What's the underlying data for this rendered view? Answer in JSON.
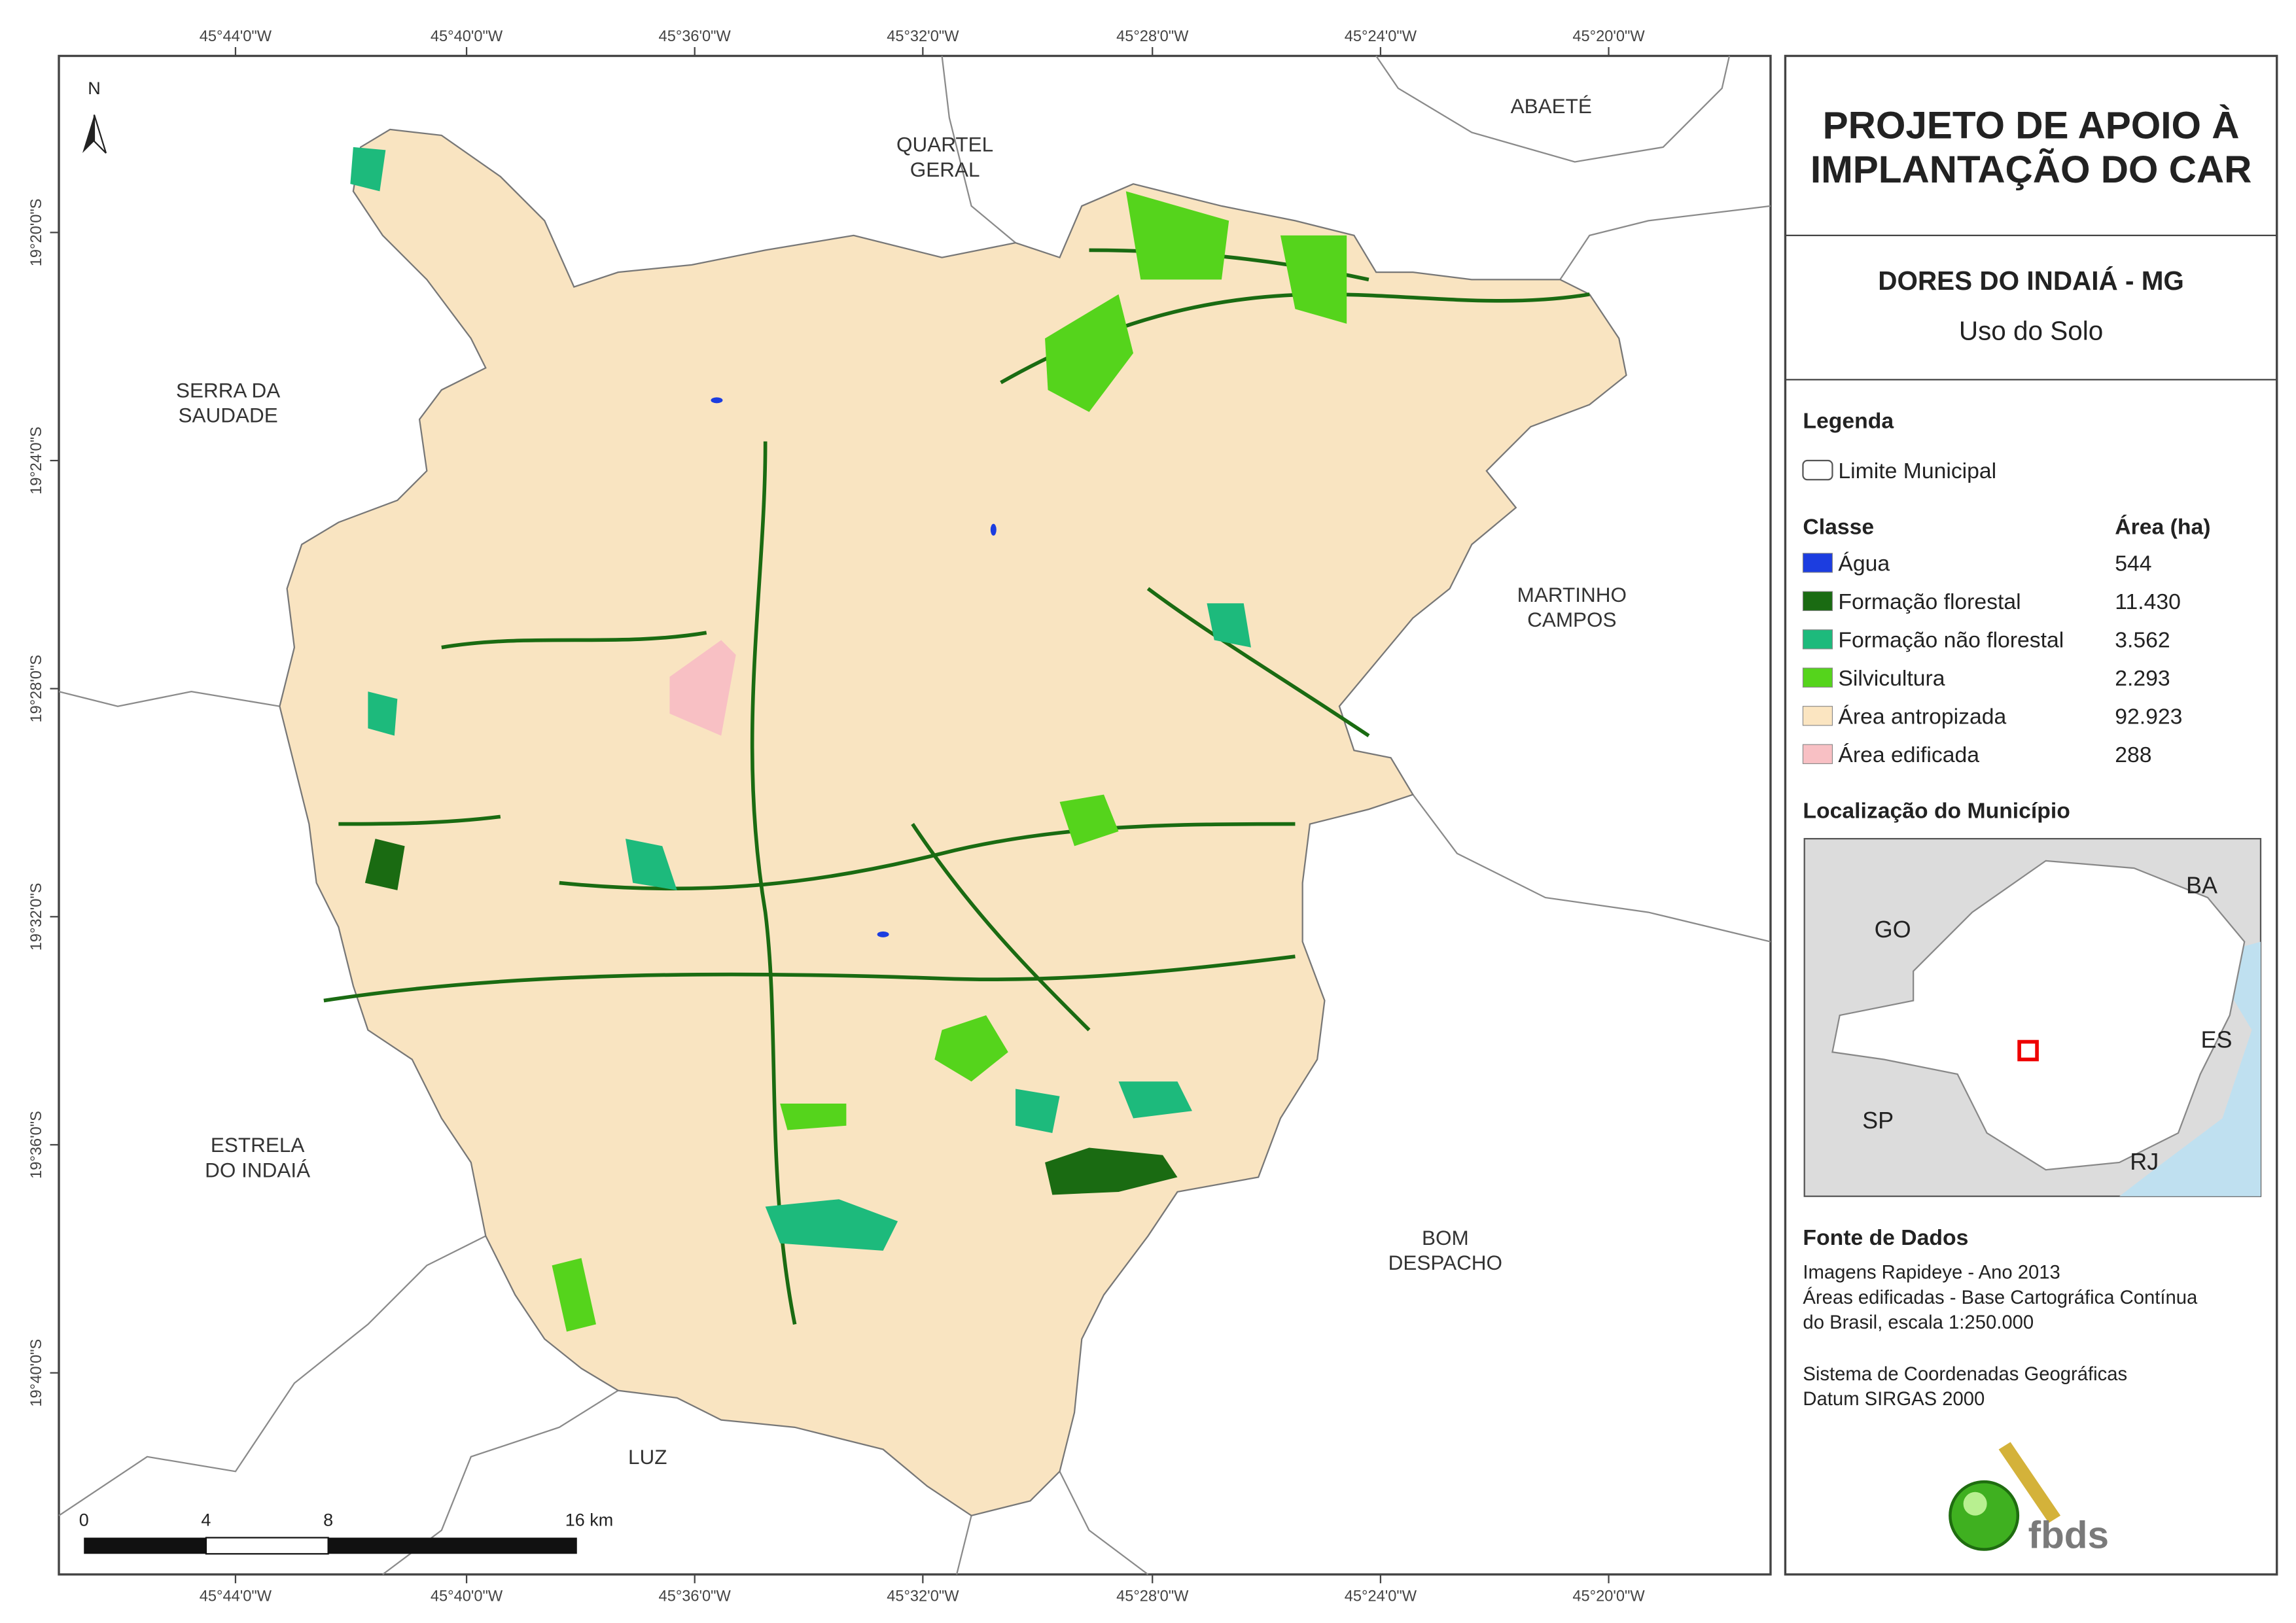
{
  "map": {
    "coordinate_labels": {
      "top": [
        "45°44'0\"W",
        "45°40'0\"W",
        "45°36'0\"W",
        "45°32'0\"W",
        "45°28'0\"W",
        "45°24'0\"W",
        "45°20'0\"W"
      ],
      "bottom": [
        "45°44'0\"W",
        "45°40'0\"W",
        "45°36'0\"W",
        "45°32'0\"W",
        "45°28'0\"W",
        "45°24'0\"W",
        "45°20'0\"W"
      ],
      "left": [
        "19°20'0\"S",
        "19°24'0\"S",
        "19°28'0\"S",
        "19°32'0\"S",
        "19°36'0\"S",
        "19°40'0\"S"
      ]
    },
    "neighbor_labels": [
      [
        "QUARTEL",
        "GERAL"
      ],
      [
        "ABAETÉ"
      ],
      [
        "SERRA DA",
        "SAUDADE"
      ],
      [
        "MARTINHO",
        "CAMPOS"
      ],
      [
        "ESTRELA",
        "DO INDAIÁ"
      ],
      [
        "BOM",
        "DESPACHO"
      ],
      [
        "LUZ"
      ]
    ],
    "north": "N",
    "scale_bar": [
      "0",
      "4",
      "8",
      "16 km"
    ]
  },
  "panel": {
    "title": [
      "PROJETO DE APOIO À",
      "IMPLANTAÇÃO DO CAR"
    ],
    "subtitle": "DORES DO INDAIÁ - MG",
    "theme": "Uso do Solo",
    "legend": {
      "heading": "Legenda",
      "boundary": "Limite Municipal",
      "class_heading": "Classe",
      "area_heading": "Área (ha)",
      "items": [
        {
          "label": "Água",
          "area": "544",
          "color": "#1c3de0"
        },
        {
          "label": "Formação florestal",
          "area": "11.430",
          "color": "#1a6b12"
        },
        {
          "label": "Formação não florestal",
          "area": "3.562",
          "color": "#1dba7c"
        },
        {
          "label": "Silvicultura",
          "area": "2.293",
          "color": "#55d41c"
        },
        {
          "label": "Área antropizada",
          "area": "92.923",
          "color": "#fbe5c1"
        },
        {
          "label": "Área edificada",
          "area": "288",
          "color": "#f8c0c4"
        }
      ]
    },
    "location": {
      "heading": "Localização do Município",
      "states": [
        "GO",
        "BA",
        "ES",
        "SP",
        "RJ"
      ]
    },
    "sources": {
      "heading": "Fonte de Dados",
      "lines": [
        "Imagens Rapideye - Ano 2013",
        "Áreas edificadas - Base Cartográfica Contínua",
        "do Brasil, escala 1:250.000",
        "Sistema de Coordenadas Geográficas",
        "Datum SIRGAS 2000"
      ]
    },
    "logo": "fbds"
  }
}
